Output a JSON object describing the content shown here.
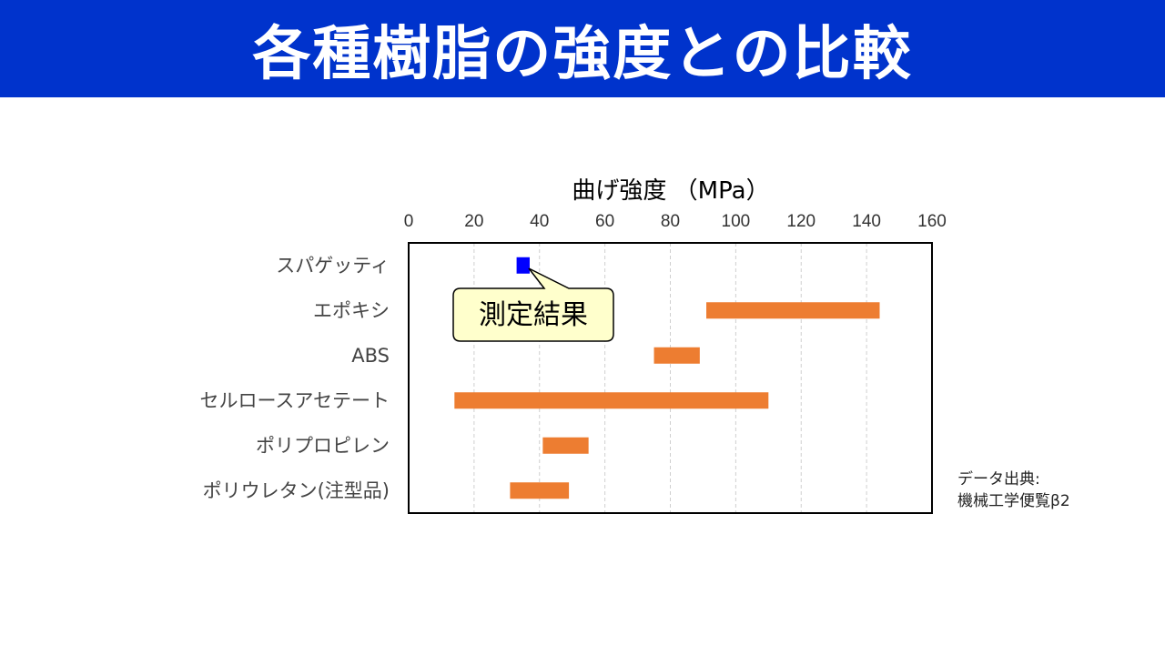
{
  "slide": {
    "title": "各種樹脂の強度との比較"
  },
  "chart_data": {
    "type": "bar",
    "orientation": "horizontal-range",
    "xlabel": "曲げ強度 （MPa）",
    "xlim": [
      0,
      160
    ],
    "xticks": [
      "0",
      "20",
      "40",
      "60",
      "80",
      "100",
      "120",
      "140",
      "160"
    ],
    "grid": true,
    "categories": [
      "スパゲッティ",
      "エポキシ",
      "ABS",
      "セルロースアセテート",
      "ポリプロピレン",
      "ポリウレタン(注型品)"
    ],
    "ranges": [
      {
        "category": "スパゲッティ",
        "min": 33,
        "max": 37,
        "color": "#0000ff"
      },
      {
        "category": "エポキシ",
        "min": 91,
        "max": 144,
        "color": "#ed7d31"
      },
      {
        "category": "ABS",
        "min": 75,
        "max": 89,
        "color": "#ed7d31"
      },
      {
        "category": "セルロースアセテート",
        "min": 14,
        "max": 110,
        "color": "#ed7d31"
      },
      {
        "category": "ポリプロピレン",
        "min": 41,
        "max": 55,
        "color": "#ed7d31"
      },
      {
        "category": "ポリウレタン(注型品)",
        "min": 31,
        "max": 49,
        "color": "#ed7d31"
      }
    ],
    "annotation": {
      "text": "測定結果",
      "target": "スパゲッティ"
    }
  },
  "source": {
    "line1": "データ出典:",
    "line2": "機械工学便覧β2"
  },
  "colors": {
    "title_bg": "#0033cc",
    "bar": "#ed7d31",
    "measured": "#0000ff",
    "callout_fill": "#ffffcc"
  }
}
